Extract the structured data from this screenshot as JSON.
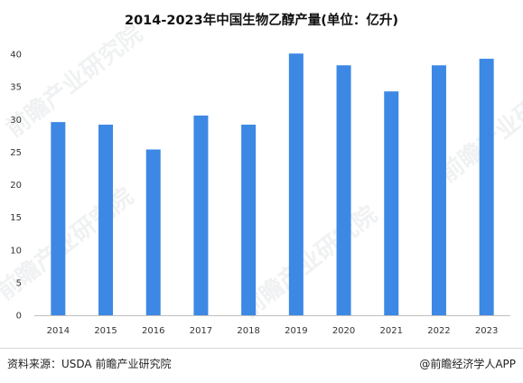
{
  "title": "2014-2023年中国生物乙醇产量(单位：亿升)",
  "footer": {
    "source": "资料来源：USDA 前瞻产业研究院",
    "credit": "@前瞻经济学人APP"
  },
  "watermark": {
    "text": "前瞻产业研究院"
  },
  "colors": {
    "bar": "#3c88e4",
    "axis": "#bfbfbf",
    "text": "#333333"
  },
  "chart_data": {
    "type": "bar",
    "title": "2014-2023年中国生物乙醇产量(单位：亿升)",
    "categories": [
      "2014",
      "2015",
      "2016",
      "2017",
      "2018",
      "2019",
      "2020",
      "2021",
      "2022",
      "2023"
    ],
    "values": [
      29.6,
      29.2,
      25.4,
      30.6,
      29.2,
      40.1,
      38.3,
      34.3,
      38.3,
      39.3
    ],
    "ylim": [
      0,
      40
    ],
    "yticks": [
      0,
      5,
      10,
      15,
      20,
      25,
      30,
      35,
      40
    ],
    "grid": false,
    "legend": "none"
  }
}
